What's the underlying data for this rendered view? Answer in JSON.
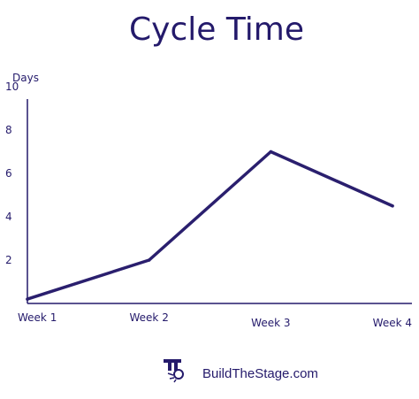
{
  "colors": {
    "ink": "#241a6b",
    "line": "#2a1f6e"
  },
  "chart_data": {
    "type": "line",
    "title": "Cycle Time",
    "ylabel": "Days",
    "xlabel": "",
    "categories": [
      "Week 1",
      "Week 2",
      "Week 3",
      "Week 4"
    ],
    "series": [
      {
        "values": [
          0.2,
          2,
          7,
          4.5
        ]
      }
    ],
    "yticks": [
      "2",
      "4",
      "6",
      "8",
      "10"
    ],
    "ytick_values": [
      2,
      4,
      6,
      8,
      10
    ],
    "ylim": [
      0,
      12
    ],
    "grid": false,
    "legend": "none"
  },
  "footer": {
    "text": "BuildTheStage.com",
    "logo_icon": "stage-spotlight-icon"
  }
}
